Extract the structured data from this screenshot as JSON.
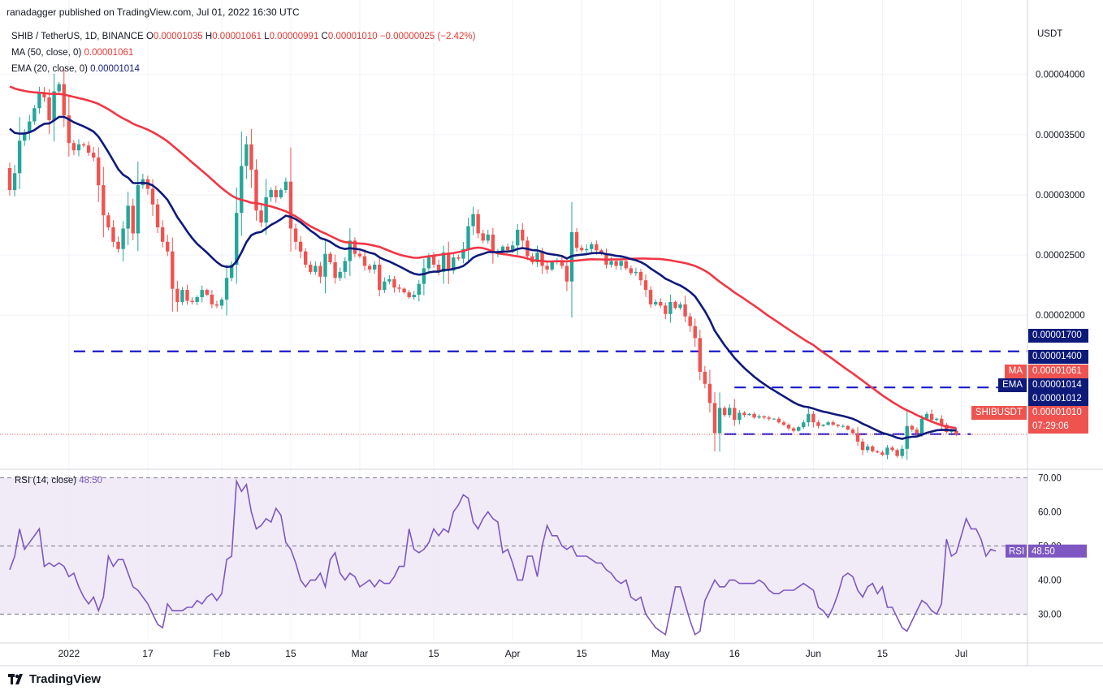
{
  "publisher_line": "ranadagger published on TradingView.com, Jul 01, 2022 16:30 UTC",
  "legend": {
    "symbol": "SHIB / TetherUS, 1D, BINANCE",
    "open_label": "O",
    "open": "0.00001035",
    "high_label": "H",
    "high": "0.00001061",
    "low_label": "L",
    "low": "0.00000991",
    "close_label": "C",
    "close": "0.00001010",
    "change": "−0.00000025 (−2.42%)",
    "ma_label": "MA (50, close, 0)",
    "ma_value": "0.00001061",
    "ema_label": "EMA (20, close, 0)",
    "ema_value": "0.00001014"
  },
  "rsi_legend": {
    "label": "RSI (14, close)",
    "value": "48.50"
  },
  "logo_text": "TradingView",
  "colors": {
    "up": "#26a69a",
    "down": "#ef5350",
    "ma": "#f23645",
    "ema": "#0d1a7a",
    "level_line": "#1a1acd",
    "rsi": "#7e57c2",
    "rsi_band": "#ede7f6",
    "grid": "#f0f3fa",
    "axis_text": "#131722",
    "tag_blue": "#0d1a7a",
    "tag_red": "#ef5350"
  },
  "chart_data": [
    {
      "type": "candlestick",
      "title": "SHIB / TetherUS, 1D, BINANCE",
      "ylabel": "USDT",
      "ylim": [
        7.2e-06,
        4.43e-05
      ],
      "yticks": [
        "0.00004000",
        "0.00003500",
        "0.00003000",
        "0.00002500",
        "0.00002000"
      ],
      "ytick_values": [
        4e-05,
        3.5e-05,
        3e-05,
        2.5e-05,
        2e-05
      ],
      "x_labels": [
        "2022",
        "17",
        "Feb",
        "15",
        "Mar",
        "15",
        "Apr",
        "15",
        "May",
        "16",
        "Jun",
        "15",
        "Jul"
      ],
      "x_label_day_index": [
        12,
        28,
        43,
        57,
        71,
        86,
        102,
        116,
        132,
        147,
        163,
        177,
        193
      ],
      "start_date": "2021-12-20",
      "close": [
        3.04,
        3.18,
        3.45,
        3.52,
        3.61,
        3.72,
        3.84,
        3.81,
        3.62,
        3.86,
        3.92,
        3.66,
        3.43,
        3.37,
        3.42,
        3.41,
        3.35,
        3.31,
        3.08,
        2.83,
        2.73,
        2.61,
        2.55,
        2.72,
        2.91,
        2.68,
        3.08,
        3.13,
        3.05,
        2.92,
        2.73,
        2.61,
        2.53,
        2.22,
        2.11,
        2.21,
        2.12,
        2.11,
        2.15,
        2.21,
        2.17,
        2.09,
        2.08,
        2.13,
        2.31,
        2.42,
        2.85,
        3.24,
        3.42,
        3.21,
        2.87,
        2.77,
        2.98,
        3.04,
        2.98,
        3.04,
        3.11,
        2.72,
        2.61,
        2.53,
        2.42,
        2.36,
        2.41,
        2.32,
        2.51,
        2.44,
        2.31,
        2.36,
        2.45,
        2.62,
        2.51,
        2.49,
        2.41,
        2.38,
        2.42,
        2.21,
        2.28,
        2.3,
        2.23,
        2.22,
        2.19,
        2.15,
        2.17,
        2.26,
        2.39,
        2.49,
        2.42,
        2.36,
        2.52,
        2.37,
        2.48,
        2.47,
        2.55,
        2.74,
        2.84,
        2.68,
        2.62,
        2.67,
        2.52,
        2.52,
        2.57,
        2.54,
        2.58,
        2.71,
        2.62,
        2.49,
        2.44,
        2.52,
        2.41,
        2.38,
        2.44,
        2.45,
        2.41,
        2.28,
        2.69,
        2.56,
        2.54,
        2.55,
        2.59,
        2.54,
        2.51,
        2.42,
        2.45,
        2.41,
        2.45,
        2.39,
        2.35,
        2.36,
        2.29,
        2.21,
        2.09,
        2.11,
        2.08,
        2.01,
        2.11,
        2.06,
        2.09,
        1.99,
        1.91,
        1.81,
        1.53,
        1.43,
        1.27,
        1.02,
        1.23,
        1.17,
        1.23,
        1.13,
        1.19,
        1.17,
        1.18,
        1.15,
        1.16,
        1.15,
        1.14,
        1.14,
        1.11,
        1.09,
        1.06,
        1.04,
        1.07,
        1.11,
        1.18,
        1.11,
        1.08,
        1.09,
        1.11,
        1.09,
        1.08,
        1.08,
        1.05,
        1.02,
        0.95,
        0.88,
        0.91,
        0.87,
        0.86,
        0.84,
        0.9,
        0.88,
        0.83,
        0.89,
        1.08,
        1.05,
        1.02,
        1.14,
        1.18,
        1.13,
        1.14,
        1.09,
        1.03,
        1.04,
        1.01
      ],
      "close_scale": "x 1e-5 USDT",
      "ma_50_last": "0.00001061",
      "ema_20_last": "0.00001014",
      "horizontal_levels": [
        "0.00001700",
        "0.00001400",
        "0.00001012"
      ],
      "price_tags": [
        {
          "label": "",
          "value": "0.00001700",
          "style": "blue"
        },
        {
          "label": "",
          "value": "0.00001400",
          "style": "blue"
        },
        {
          "label": "MA",
          "value": "0.00001061",
          "style": "red"
        },
        {
          "label": "EMA",
          "value": "0.00001014",
          "style": "blue"
        },
        {
          "label": "",
          "value": "0.00001012",
          "style": "blue"
        },
        {
          "label": "SHIBUSDT",
          "value": "0.00001010",
          "style": "red"
        }
      ],
      "countdown": "07:29:06"
    },
    {
      "type": "line",
      "title": "RSI (14, close)",
      "ylim": [
        22,
        72
      ],
      "yticks": [
        "70.00",
        "60.00",
        "50.00",
        "40.00",
        "30.00"
      ],
      "ytick_values": [
        70,
        60,
        50,
        40,
        30
      ],
      "band": [
        30,
        70
      ],
      "midline": 50,
      "values": [
        43,
        47,
        55,
        49,
        51,
        53,
        55,
        44,
        45,
        44,
        45,
        44,
        41,
        42,
        38,
        35,
        33,
        35,
        31,
        35,
        47,
        44,
        46,
        46,
        42,
        38,
        37,
        35,
        33,
        30,
        27,
        26,
        33,
        31,
        31,
        31,
        32,
        32,
        34,
        33,
        35,
        36,
        34,
        36,
        46,
        47,
        69,
        66,
        68,
        60,
        55,
        56,
        58,
        57,
        61,
        59,
        51,
        49,
        45,
        40,
        38,
        40,
        40,
        42,
        38,
        46,
        48,
        42,
        40,
        42,
        41,
        38,
        39,
        40,
        38,
        40,
        39,
        39,
        41,
        44,
        44,
        55,
        49,
        48,
        49,
        51,
        55,
        53,
        55,
        54,
        60,
        62,
        65,
        64,
        57,
        55,
        58,
        60,
        58,
        57,
        48,
        49,
        45,
        40,
        40,
        47,
        47,
        41,
        50,
        56,
        53,
        53,
        50,
        49,
        50,
        47,
        47,
        47,
        46,
        45,
        45,
        43,
        42,
        40,
        39,
        40,
        35,
        34,
        35,
        30,
        28,
        26,
        25,
        24,
        31,
        38,
        38,
        33,
        28,
        24,
        25,
        34,
        37,
        40,
        38,
        38,
        40,
        40,
        39,
        39,
        39,
        39,
        40,
        39,
        37,
        36,
        36,
        37,
        37,
        37,
        38,
        39,
        38,
        37,
        32,
        31,
        29,
        32,
        36,
        41,
        42,
        41,
        37,
        35,
        38,
        39,
        36,
        38,
        32,
        32,
        29,
        26,
        25,
        28,
        31,
        34,
        33,
        31,
        30,
        33,
        52,
        47,
        48,
        53,
        58,
        55,
        55,
        52,
        47,
        49,
        48.5
      ],
      "last_value": "48.50"
    }
  ]
}
